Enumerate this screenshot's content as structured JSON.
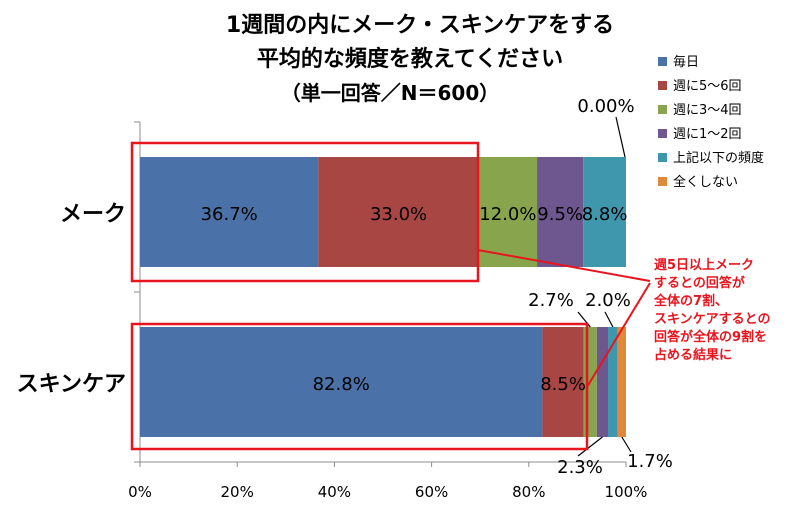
{
  "chart_data": {
    "type": "bar",
    "orientation": "horizontal",
    "stacked": true,
    "title": [
      "1週間の内にメーク・スキンケアをする",
      "平均的な頻度を教えてください",
      "（単一回答／N＝600）"
    ],
    "categories": [
      "メーク",
      "スキンケア"
    ],
    "series": [
      {
        "name": "毎日",
        "color": "#4A72A8",
        "values": [
          36.7,
          82.8
        ]
      },
      {
        "name": "週に5～6回",
        "color": "#A84643",
        "values": [
          33.0,
          8.5
        ]
      },
      {
        "name": "週に3～4回",
        "color": "#88A54E",
        "values": [
          12.0,
          2.7
        ]
      },
      {
        "name": "週に1～2回",
        "color": "#6E568F",
        "values": [
          9.5,
          2.3
        ]
      },
      {
        "name": "上記以下の頻度",
        "color": "#3F97AE",
        "values": [
          8.8,
          2.0
        ]
      },
      {
        "name": "全くしない",
        "color": "#E0893B",
        "values": [
          0.0,
          1.7
        ]
      }
    ],
    "data_labels": {
      "inside": [
        [
          "36.7%",
          "33.0%",
          "12.0%",
          "9.5%",
          "8.8%"
        ],
        [
          "82.8%",
          "8.5%"
        ]
      ],
      "callouts": [
        "0.00%",
        "2.7%",
        "2.0%",
        "2.3%",
        "1.7%"
      ]
    },
    "x_axis": {
      "min": 0,
      "max": 100,
      "ticks": [
        "0%",
        "20%",
        "40%",
        "60%",
        "80%",
        "100%"
      ]
    },
    "grid": false,
    "legend": "right",
    "annotation": {
      "lines": [
        "週5日以上メーク",
        "するとの回答が",
        "全体の7割、",
        "スキンケアするとの",
        "回答が全体の9割を",
        "占める結果に"
      ],
      "color": "#E8141E"
    }
  }
}
